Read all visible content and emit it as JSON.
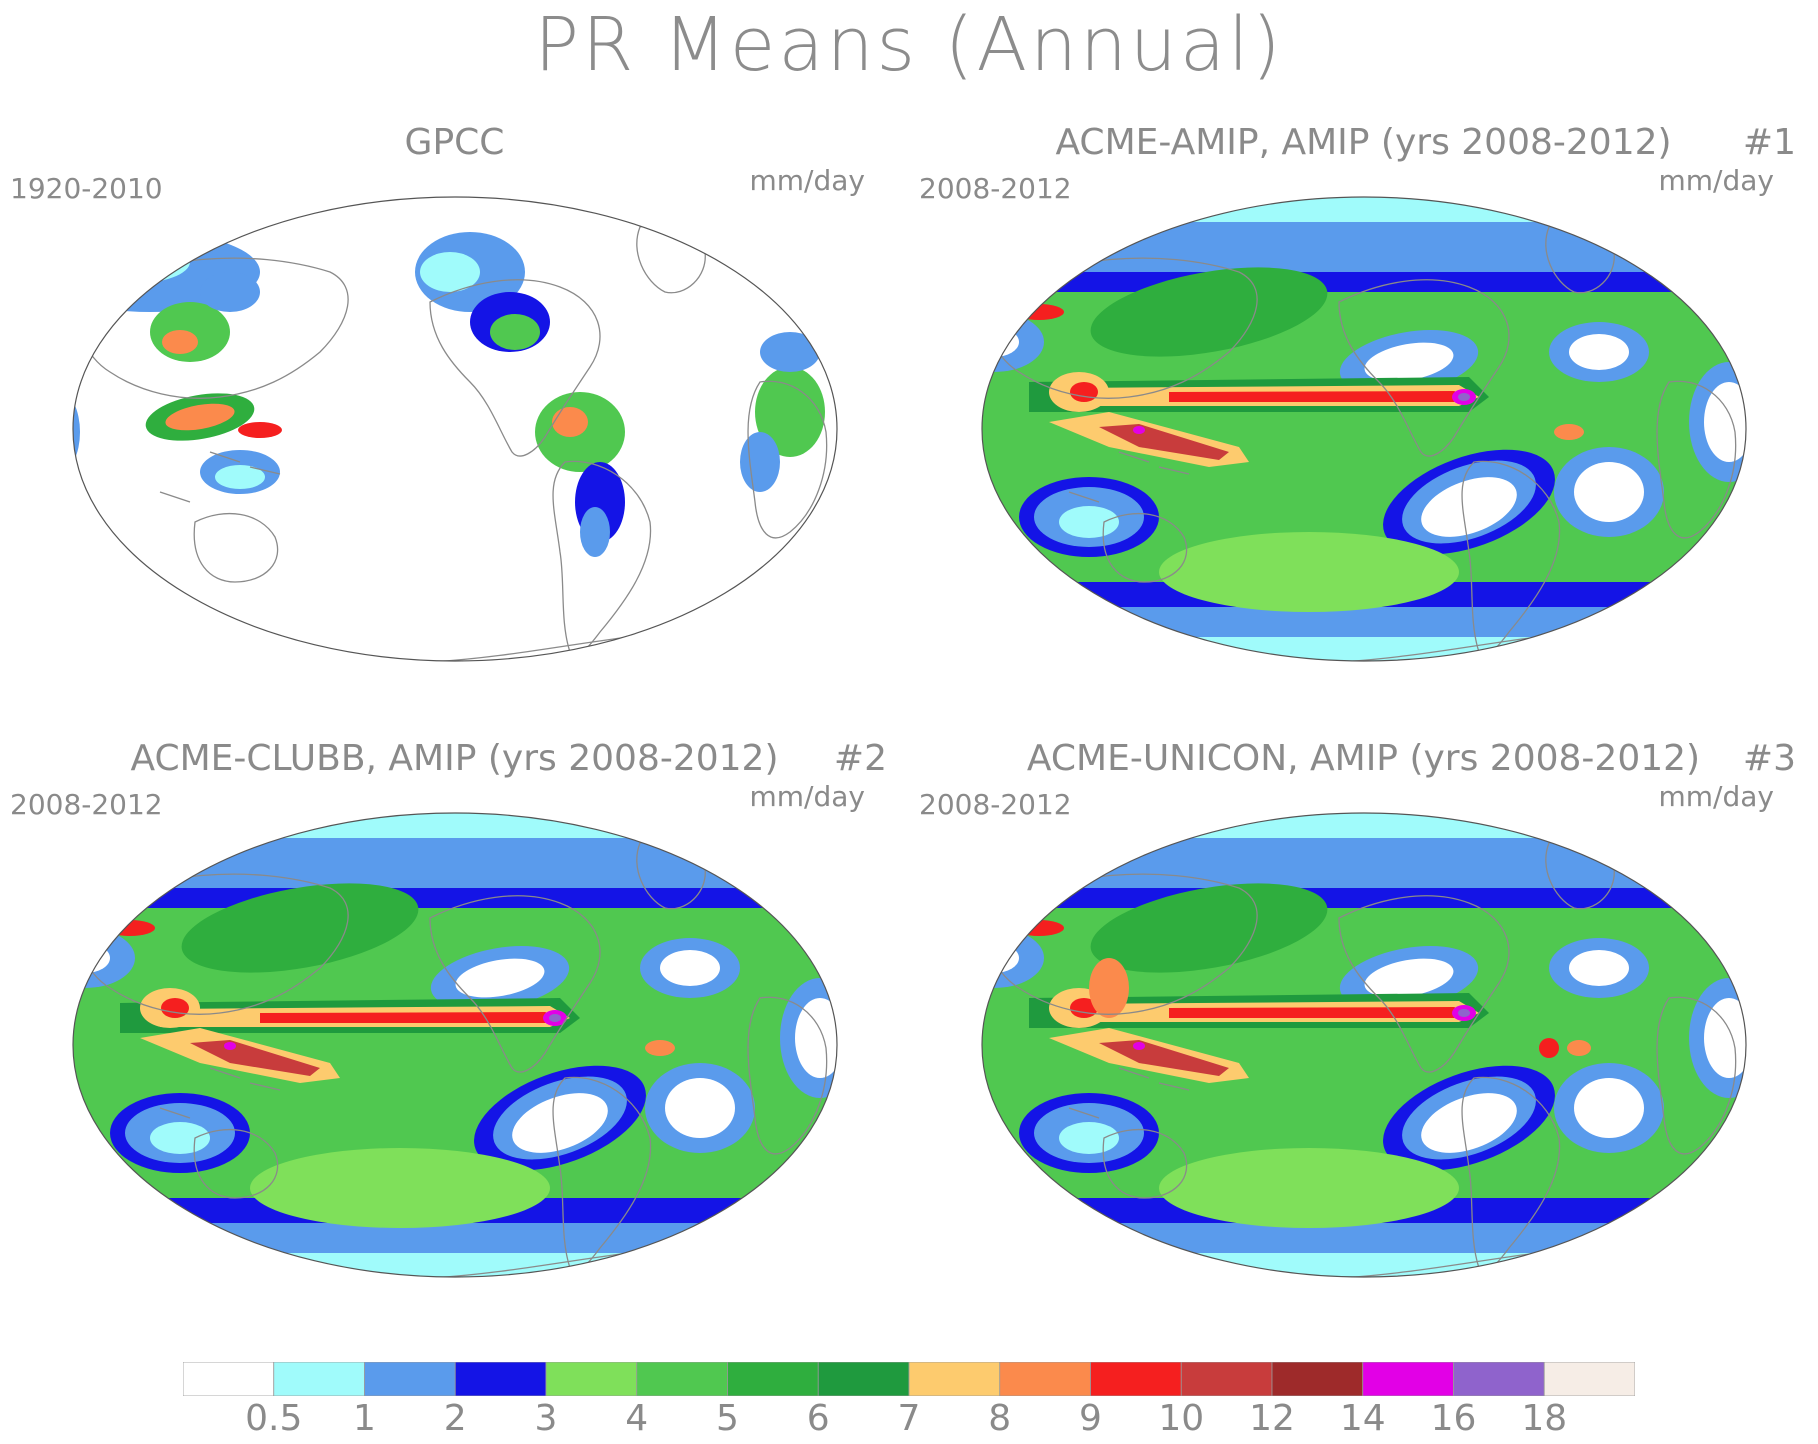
{
  "title": "PR Means (Annual)",
  "panels": [
    {
      "title": "GPCC",
      "number": "",
      "years": "1920-2010",
      "units": "mm/day",
      "kind": "obs"
    },
    {
      "title": "ACME-AMIP, AMIP (yrs 2008-2012)",
      "number": "#1",
      "years": "2008-2012",
      "units": "mm/day",
      "kind": "model"
    },
    {
      "title": "ACME-CLUBB, AMIP (yrs 2008-2012)",
      "number": "#2",
      "years": "2008-2012",
      "units": "mm/day",
      "kind": "model"
    },
    {
      "title": "ACME-UNICON, AMIP (yrs 2008-2012)",
      "number": "#3",
      "years": "2008-2012",
      "units": "mm/day",
      "kind": "model"
    }
  ],
  "colorbar": {
    "colors": [
      "#ffffff",
      "#a0fbfb",
      "#5a9bec",
      "#1414e6",
      "#7fe05a",
      "#50c850",
      "#2fae3e",
      "#1f9a3e",
      "#fdcb6e",
      "#fb8a4c",
      "#f51f1f",
      "#c83c3c",
      "#9e2a2a",
      "#e200e6",
      "#8f63cc",
      "#f6ede6"
    ],
    "labels": [
      "0.5",
      "1",
      "2",
      "3",
      "4",
      "5",
      "6",
      "7",
      "8",
      "9",
      "10",
      "12",
      "14",
      "16",
      "18"
    ]
  }
}
